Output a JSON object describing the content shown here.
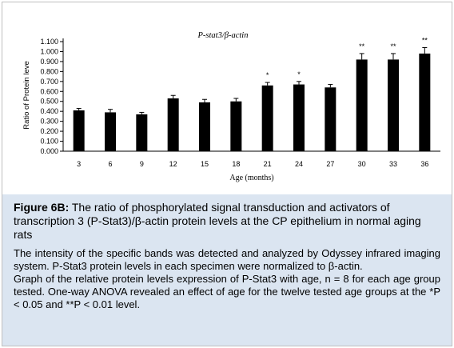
{
  "chart_data": {
    "type": "bar",
    "title": "P-stat3/β-actin",
    "xlabel": "Age (months)",
    "ylabel": "Ratio of Protein leve",
    "categories": [
      "3",
      "6",
      "9",
      "12",
      "15",
      "18",
      "21",
      "24",
      "27",
      "30",
      "33",
      "36"
    ],
    "values": [
      0.41,
      0.39,
      0.37,
      0.53,
      0.49,
      0.5,
      0.66,
      0.67,
      0.64,
      0.92,
      0.92,
      0.98
    ],
    "errors": [
      0.02,
      0.03,
      0.02,
      0.03,
      0.03,
      0.03,
      0.03,
      0.03,
      0.03,
      0.06,
      0.06,
      0.06
    ],
    "significance": [
      "",
      "",
      "",
      "",
      "",
      "",
      "*",
      "*",
      "",
      "**",
      "**",
      "**"
    ],
    "yticks": [
      "0.000",
      "0.100",
      "0.200",
      "0.300",
      "0.400",
      "0.500",
      "0.600",
      "0.700",
      "0.800",
      "0.900",
      "1.000",
      "1.100"
    ],
    "ylim": [
      0,
      1.1
    ],
    "bar_color": "#000000",
    "grid": false,
    "legend": "none"
  },
  "caption": {
    "figure_label": "Figure 6B:",
    "figure_text": "The ratio of phosphorylated signal transduction and activators of transcription 3 (P-Stat3)/β-actin protein levels at the CP epithelium in normal aging rats",
    "paragraph1": "The intensity of the specific bands was detected and analyzed by Odyssey infrared imaging system. P-Stat3 protein levels in each specimen were normalized to β-actin.",
    "paragraph2": "Graph of the relative protein levels expression of P-Stat3 with age, n = 8 for each age group tested. One-way ANOVA revealed an effect of age for the twelve tested age groups at the *P < 0.05 and **P < 0.01 level."
  },
  "colors": {
    "caption_background": "#dbe5f1",
    "frame_border": "#bfbfbf"
  }
}
